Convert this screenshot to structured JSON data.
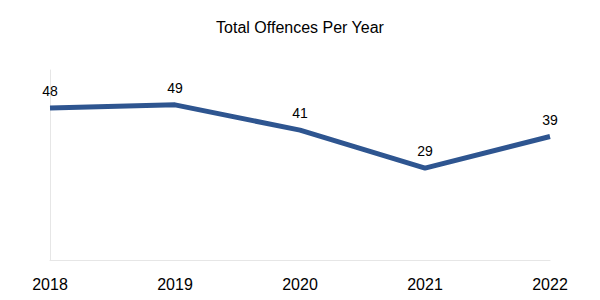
{
  "chart_data": {
    "type": "line",
    "title": "Total Offences Per Year",
    "categories": [
      "2018",
      "2019",
      "2020",
      "2021",
      "2022"
    ],
    "values": [
      48,
      49,
      41,
      29,
      39
    ],
    "color": "#2e5590",
    "ylim": [
      0,
      60
    ],
    "grid": false,
    "data_labels": true,
    "tick_labels": "x"
  }
}
